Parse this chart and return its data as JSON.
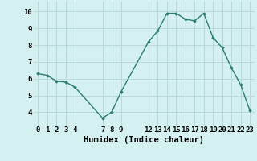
{
  "x": [
    0,
    1,
    2,
    3,
    4,
    7,
    8,
    9,
    12,
    13,
    14,
    15,
    16,
    17,
    18,
    19,
    20,
    21,
    22,
    23
  ],
  "y": [
    6.3,
    6.2,
    5.85,
    5.8,
    5.5,
    3.65,
    4.0,
    5.2,
    8.2,
    8.85,
    9.9,
    9.9,
    9.55,
    9.45,
    9.9,
    8.45,
    7.85,
    6.65,
    5.65,
    4.1
  ],
  "line_color": "#2d7d6e",
  "marker": "D",
  "marker_size": 1.8,
  "linewidth": 1.0,
  "xlabel": "Humidex (Indice chaleur)",
  "xlim": [
    -0.5,
    23.5
  ],
  "ylim": [
    3.2,
    10.6
  ],
  "yticks": [
    4,
    5,
    6,
    7,
    8,
    9,
    10
  ],
  "xticks": [
    0,
    1,
    2,
    3,
    4,
    7,
    8,
    9,
    12,
    13,
    14,
    15,
    16,
    17,
    18,
    19,
    20,
    21,
    22,
    23
  ],
  "xtick_labels": [
    "0",
    "1",
    "2",
    "3",
    "4",
    "7",
    "8",
    "9",
    "12",
    "13",
    "14",
    "15",
    "16",
    "17",
    "18",
    "19",
    "20",
    "21",
    "22",
    "23"
  ],
  "bg_color": "#d4f0f0",
  "grid_color": "#b8dada",
  "xlabel_fontsize": 7.5,
  "tick_fontsize": 6.5
}
